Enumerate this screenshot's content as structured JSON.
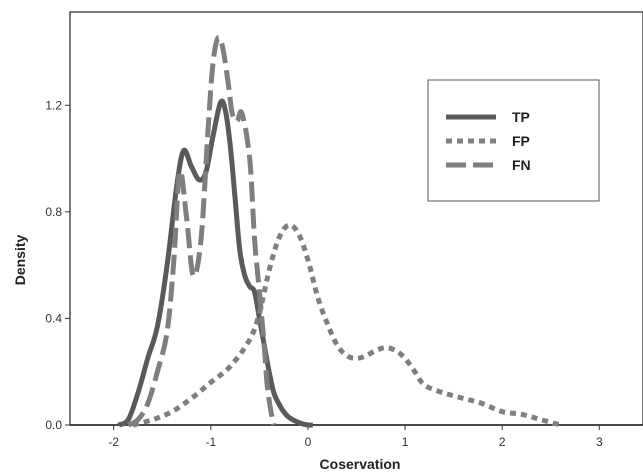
{
  "chart_data": {
    "type": "line",
    "title": "",
    "xlabel": "Coservation",
    "ylabel": "Density",
    "xlim": [
      -2.45,
      3.45
    ],
    "ylim": [
      0.0,
      1.55
    ],
    "xticks": [
      -2,
      -1,
      0,
      1,
      2,
      3
    ],
    "xtick_labels": [
      "-2",
      "-1",
      "0",
      "1",
      "2",
      "3"
    ],
    "yticks": [
      0.0,
      0.4,
      0.8,
      1.2
    ],
    "ytick_labels": [
      "0.0",
      "0.4",
      "0.8",
      "1.2"
    ],
    "grid": false,
    "legend_position": "top-right",
    "series": [
      {
        "name": "TP",
        "style": "solid",
        "color": "#5a5a5a",
        "x": [
          -1.95,
          -1.85,
          -1.75,
          -1.65,
          -1.55,
          -1.45,
          -1.35,
          -1.28,
          -1.2,
          -1.12,
          -1.05,
          -0.98,
          -0.9,
          -0.85,
          -0.8,
          -0.75,
          -0.7,
          -0.65,
          -0.6,
          -0.55,
          -0.5,
          -0.45,
          -0.4,
          -0.35,
          -0.3,
          -0.25,
          -0.2,
          -0.1,
          0.0,
          0.05
        ],
        "y": [
          0.0,
          0.02,
          0.12,
          0.25,
          0.37,
          0.6,
          0.9,
          1.03,
          0.97,
          0.92,
          0.95,
          1.08,
          1.21,
          1.18,
          1.05,
          0.85,
          0.65,
          0.56,
          0.52,
          0.5,
          0.4,
          0.3,
          0.2,
          0.12,
          0.08,
          0.05,
          0.03,
          0.01,
          0.0,
          0.0
        ]
      },
      {
        "name": "FP",
        "style": "dotted",
        "color": "#7f7f7f",
        "x": [
          -1.8,
          -1.6,
          -1.4,
          -1.2,
          -1.0,
          -0.8,
          -0.6,
          -0.5,
          -0.4,
          -0.3,
          -0.2,
          -0.1,
          0.0,
          0.1,
          0.2,
          0.3,
          0.4,
          0.5,
          0.6,
          0.7,
          0.8,
          0.9,
          1.0,
          1.1,
          1.2,
          1.4,
          1.6,
          1.8,
          2.0,
          2.2,
          2.4,
          2.6
        ],
        "y": [
          0.0,
          0.02,
          0.05,
          0.1,
          0.16,
          0.22,
          0.32,
          0.42,
          0.58,
          0.7,
          0.75,
          0.72,
          0.62,
          0.48,
          0.38,
          0.3,
          0.26,
          0.25,
          0.26,
          0.28,
          0.29,
          0.28,
          0.25,
          0.2,
          0.15,
          0.12,
          0.1,
          0.08,
          0.05,
          0.04,
          0.02,
          0.0
        ]
      },
      {
        "name": "FN",
        "style": "dashed",
        "color": "#7f7f7f",
        "x": [
          -1.85,
          -1.75,
          -1.65,
          -1.55,
          -1.45,
          -1.38,
          -1.32,
          -1.25,
          -1.18,
          -1.1,
          -1.03,
          -0.98,
          -0.93,
          -0.88,
          -0.82,
          -0.78,
          -0.73,
          -0.68,
          -0.6,
          -0.55,
          -0.5,
          -0.45,
          -0.42,
          -0.38,
          -0.35
        ],
        "y": [
          0.0,
          0.02,
          0.08,
          0.2,
          0.35,
          0.62,
          0.95,
          0.78,
          0.56,
          0.7,
          1.1,
          1.35,
          1.45,
          1.42,
          1.28,
          1.17,
          1.14,
          1.17,
          1.0,
          0.7,
          0.5,
          0.3,
          0.15,
          0.05,
          0.0
        ]
      }
    ]
  }
}
